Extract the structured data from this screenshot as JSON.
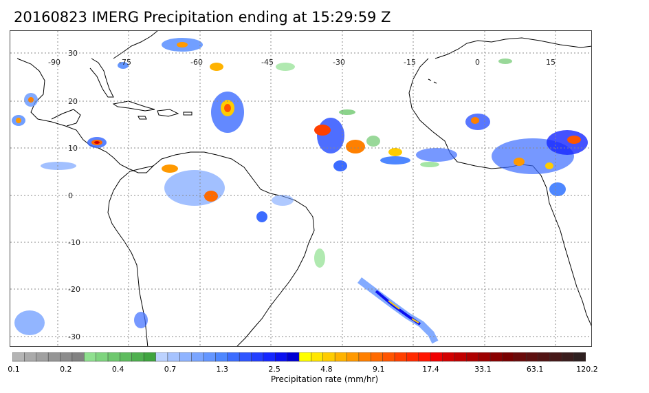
{
  "title": "20160823 IMERG Precipitation ending at 15:29:59 Z",
  "map": {
    "lon_labels": [
      "-90",
      "-75",
      "-60",
      "-45",
      "-30",
      "-15",
      "0",
      "15"
    ],
    "lat_labels": [
      "30",
      "20",
      "10",
      "0",
      "-10",
      "-20",
      "-30"
    ],
    "gridline_style": "dotted"
  },
  "colorbar": {
    "title": "Precipitation rate (mm/hr)",
    "labels": [
      "0.1",
      "0.2",
      "0.4",
      "0.7",
      "1.3",
      "2.5",
      "4.8",
      "9.1",
      "17.4",
      "33.1",
      "63.1",
      "120.2"
    ],
    "segment_colors": [
      "#b4b4b4",
      "#aaaaaa",
      "#a0a0a0",
      "#969696",
      "#8c8c8c",
      "#828282",
      "#8fe08f",
      "#7ed47e",
      "#6ec86e",
      "#5ebc5e",
      "#4eb04e",
      "#3fa43f",
      "#bcd2ff",
      "#a6c3ff",
      "#90b4ff",
      "#7aa5ff",
      "#6496ff",
      "#4e87ff",
      "#3c6cff",
      "#2f55ff",
      "#223eff",
      "#1527ff",
      "#0a10f0",
      "#0000d2",
      "#ffff00",
      "#ffe600",
      "#ffcc00",
      "#ffb300",
      "#ff9900",
      "#ff8000",
      "#ff6a00",
      "#ff5500",
      "#ff4000",
      "#ff2a00",
      "#ff1500",
      "#f00000",
      "#d20000",
      "#c00000",
      "#ae0000",
      "#9c0000",
      "#8a0000",
      "#780000",
      "#6a0a0a",
      "#5e1010",
      "#521414",
      "#461818",
      "#3a1c1c",
      "#2e2020"
    ]
  }
}
